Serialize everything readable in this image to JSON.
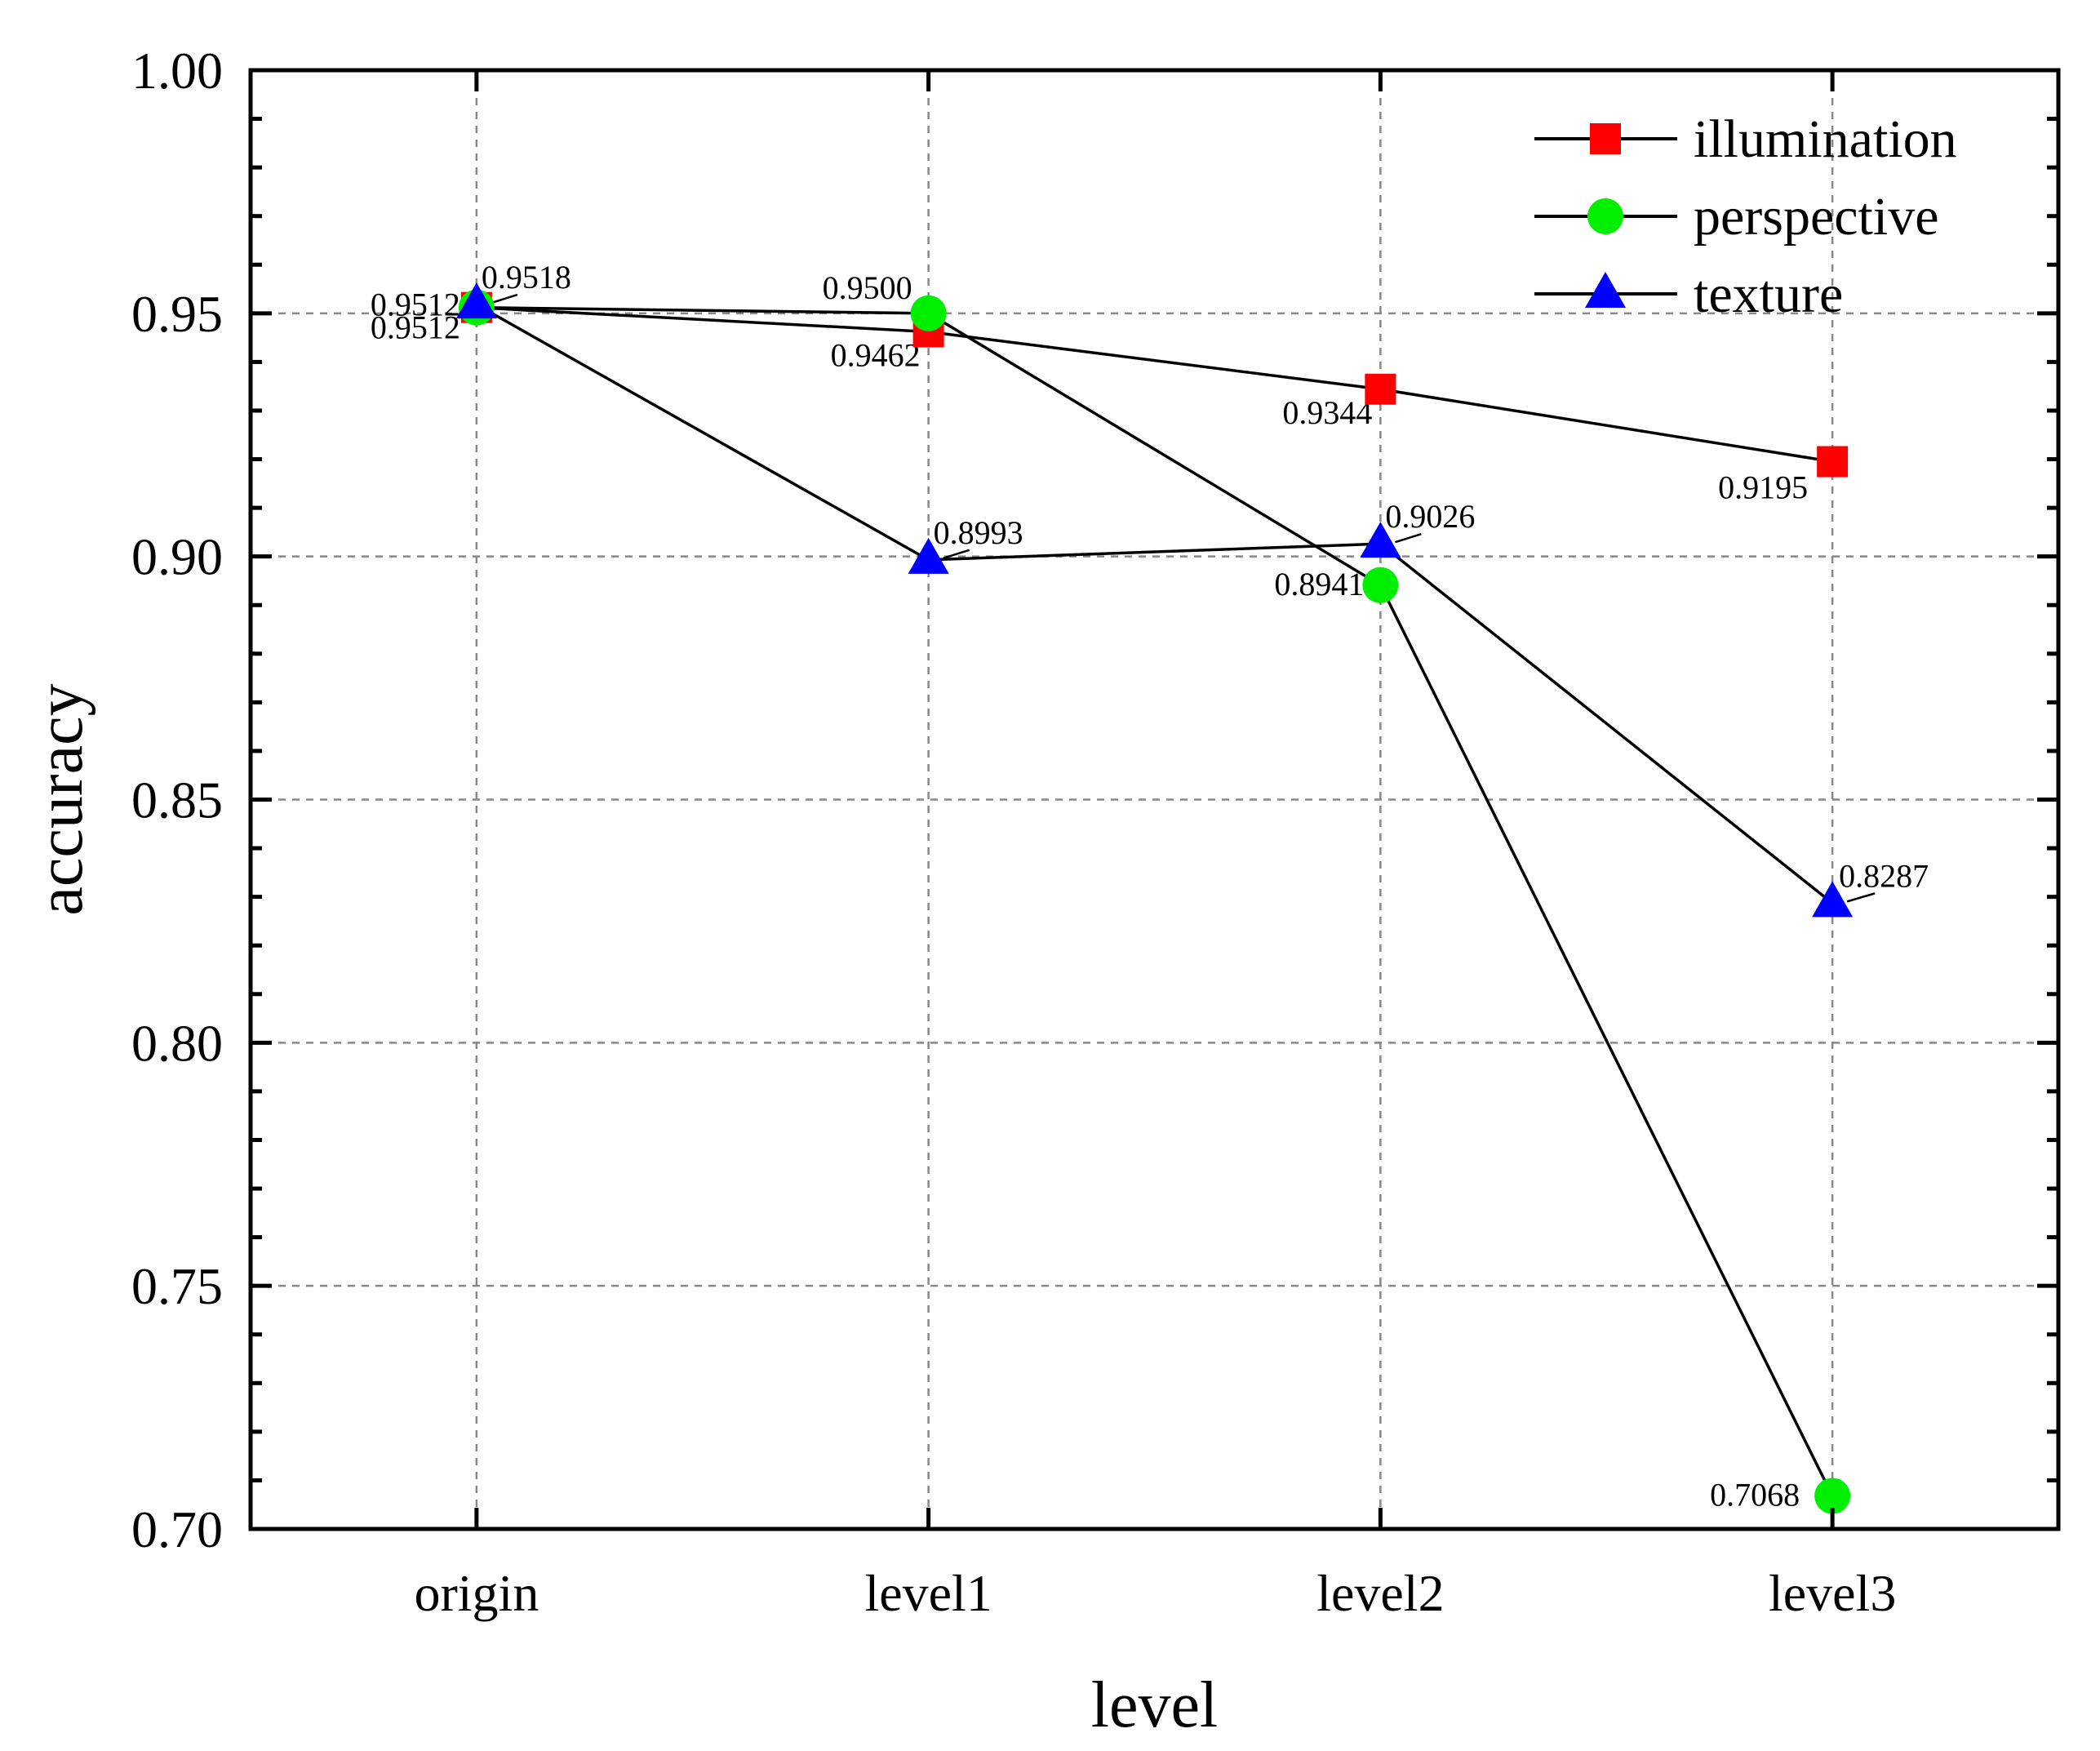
{
  "chart_data": {
    "type": "line",
    "title": "",
    "xlabel": "level",
    "ylabel": "accuracy",
    "categories": [
      "origin",
      "level1",
      "level2",
      "level3"
    ],
    "ylim": [
      0.7,
      1.0
    ],
    "yticks": [
      "0.70",
      "0.75",
      "0.80",
      "0.85",
      "0.90",
      "0.95",
      "1.00"
    ],
    "grid": true,
    "legend_position": "top-right",
    "series": [
      {
        "name": "illumination",
        "marker": "square",
        "color": "#ff0000",
        "values": [
          0.9512,
          0.9462,
          0.9344,
          0.9195
        ],
        "labels": [
          "0.9512",
          "0.9462",
          "0.9344",
          "0.9195"
        ]
      },
      {
        "name": "perspective",
        "marker": "circle",
        "color": "#00ee00",
        "values": [
          0.9512,
          0.95,
          0.8941,
          0.7068
        ],
        "labels": [
          "0.9512",
          "0.9500",
          "0.8941",
          "0.7068"
        ]
      },
      {
        "name": "texture",
        "marker": "triangle",
        "color": "#0000ff",
        "values": [
          0.9518,
          0.8993,
          0.9026,
          0.8287
        ],
        "labels": [
          "0.9518",
          "0.8993",
          "0.9026",
          "0.8287"
        ]
      }
    ]
  }
}
